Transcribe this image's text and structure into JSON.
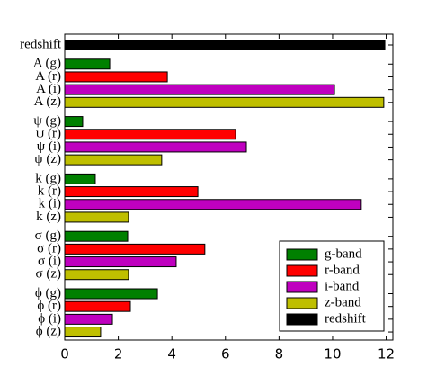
{
  "chart_data": {
    "type": "barh",
    "categories": [
      "redshift",
      null,
      "A (g)",
      "A (r)",
      "A (i)",
      "A (z)",
      null,
      "ψ (g)",
      "ψ (r)",
      "ψ (i)",
      "ψ (z)",
      null,
      "k (g)",
      "k (r)",
      "k (i)",
      "k (z)",
      null,
      "σ (g)",
      "σ (r)",
      "σ (i)",
      "σ (z)",
      null,
      "ϕ (g)",
      "ϕ (r)",
      "ϕ (i)",
      "ϕ (z)"
    ],
    "series": [
      {
        "name": "g-band",
        "color": "#008000",
        "values": [
          null,
          null,
          1.68,
          null,
          null,
          null,
          null,
          0.67,
          null,
          null,
          null,
          null,
          1.14,
          null,
          null,
          null,
          null,
          2.35,
          null,
          null,
          null,
          null,
          3.46,
          null,
          null,
          null
        ]
      },
      {
        "name": "r-band",
        "color": "#ff0000",
        "values": [
          null,
          null,
          null,
          3.83,
          null,
          null,
          null,
          null,
          6.38,
          null,
          null,
          null,
          null,
          4.97,
          null,
          null,
          null,
          null,
          5.23,
          null,
          null,
          null,
          null,
          2.45,
          null,
          null
        ]
      },
      {
        "name": "i-band",
        "color": "#bf00bf",
        "values": [
          null,
          null,
          null,
          null,
          10.07,
          null,
          null,
          null,
          null,
          6.78,
          null,
          null,
          null,
          null,
          11.07,
          null,
          null,
          null,
          null,
          4.16,
          null,
          null,
          null,
          null,
          1.78,
          null
        ]
      },
      {
        "name": "z-band",
        "color": "#bfbf00",
        "values": [
          null,
          null,
          null,
          null,
          null,
          11.91,
          null,
          null,
          null,
          null,
          3.62,
          null,
          null,
          null,
          null,
          2.38,
          null,
          null,
          null,
          null,
          2.38,
          null,
          null,
          null,
          null,
          1.34
        ]
      },
      {
        "name": "redshift",
        "color": "#000000",
        "values": [
          11.95,
          null,
          null,
          null,
          null,
          null,
          null,
          null,
          null,
          null,
          null,
          null,
          null,
          null,
          null,
          null,
          null,
          null,
          null,
          null,
          null,
          null,
          null,
          null,
          null,
          null
        ]
      }
    ],
    "xlim": [
      0,
      12.25
    ],
    "xticks": [
      0,
      2,
      4,
      6,
      8,
      10,
      12
    ],
    "legend": "lower right"
  }
}
